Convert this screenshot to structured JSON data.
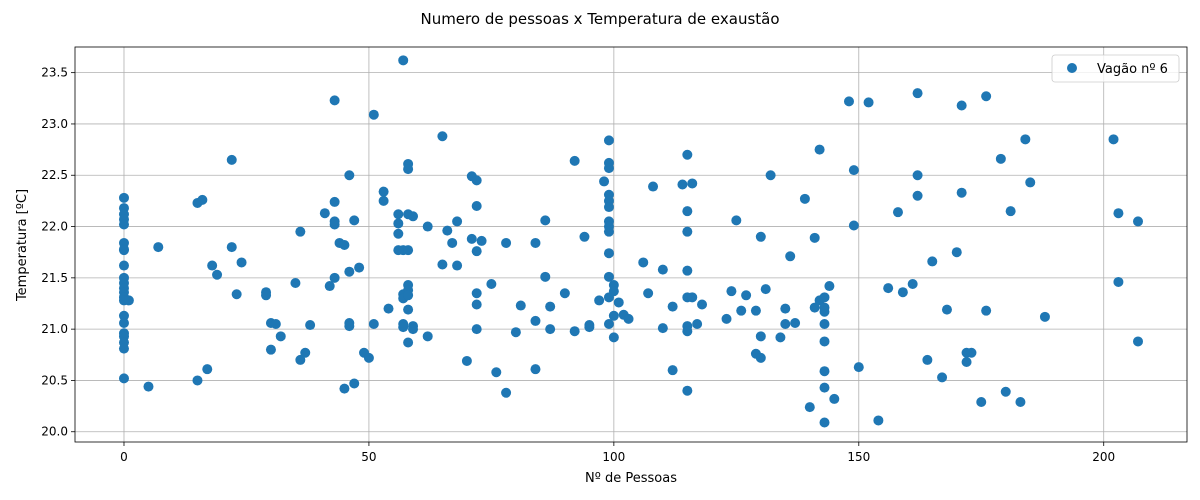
{
  "chart_data": {
    "type": "scatter",
    "title": "Numero de pessoas x Temperatura de exaustão",
    "xlabel": "Nº de Pessoas",
    "ylabel": "Temperatura [ºC]",
    "xlim": [
      -10,
      217
    ],
    "ylim": [
      19.9,
      23.75
    ],
    "xticks": [
      0,
      50,
      100,
      150,
      200
    ],
    "xtick_labels": [
      "0",
      "50",
      "100",
      "150",
      "200"
    ],
    "yticks": [
      20.0,
      20.5,
      21.0,
      21.5,
      22.0,
      22.5,
      23.0,
      23.5
    ],
    "ytick_labels": [
      "20.0",
      "20.5",
      "21.0",
      "21.5",
      "22.0",
      "22.5",
      "23.0",
      "23.5"
    ],
    "grid": true,
    "legend_position": "top-right",
    "series": [
      {
        "name": "Vagão nº 6",
        "color": "#1f77b4",
        "points": [
          [
            0,
            22.28
          ],
          [
            0,
            22.18
          ],
          [
            0,
            22.12
          ],
          [
            0,
            22.07
          ],
          [
            0,
            22.02
          ],
          [
            0,
            21.84
          ],
          [
            0,
            21.78
          ],
          [
            0,
            21.77
          ],
          [
            0,
            21.62
          ],
          [
            0,
            21.5
          ],
          [
            0,
            21.45
          ],
          [
            0,
            21.4
          ],
          [
            0,
            21.36
          ],
          [
            0,
            21.31
          ],
          [
            0,
            21.28
          ],
          [
            0,
            21.13
          ],
          [
            0,
            21.06
          ],
          [
            0,
            20.96
          ],
          [
            0,
            20.93
          ],
          [
            0,
            20.87
          ],
          [
            0,
            20.81
          ],
          [
            0,
            20.52
          ],
          [
            1,
            21.28
          ],
          [
            5,
            20.44
          ],
          [
            7,
            21.8
          ],
          [
            15,
            22.23
          ],
          [
            15,
            20.5
          ],
          [
            16,
            22.26
          ],
          [
            17,
            20.61
          ],
          [
            18,
            21.62
          ],
          [
            19,
            21.53
          ],
          [
            22,
            21.8
          ],
          [
            22,
            22.65
          ],
          [
            23,
            21.34
          ],
          [
            24,
            21.65
          ],
          [
            29,
            21.36
          ],
          [
            29,
            21.33
          ],
          [
            30,
            21.06
          ],
          [
            30,
            20.8
          ],
          [
            31,
            21.05
          ],
          [
            32,
            20.93
          ],
          [
            35,
            21.45
          ],
          [
            36,
            21.95
          ],
          [
            36,
            20.7
          ],
          [
            37,
            20.77
          ],
          [
            38,
            21.04
          ],
          [
            41,
            22.13
          ],
          [
            42,
            21.42
          ],
          [
            43,
            23.23
          ],
          [
            43,
            22.24
          ],
          [
            43,
            22.05
          ],
          [
            43,
            22.02
          ],
          [
            43,
            21.5
          ],
          [
            44,
            21.84
          ],
          [
            45,
            21.82
          ],
          [
            45,
            20.42
          ],
          [
            46,
            22.5
          ],
          [
            46,
            21.56
          ],
          [
            46,
            21.06
          ],
          [
            46,
            21.03
          ],
          [
            47,
            22.06
          ],
          [
            47,
            20.47
          ],
          [
            48,
            21.6
          ],
          [
            49,
            20.77
          ],
          [
            50,
            20.72
          ],
          [
            51,
            23.09
          ],
          [
            51,
            21.05
          ],
          [
            53,
            22.34
          ],
          [
            53,
            22.25
          ],
          [
            54,
            21.2
          ],
          [
            56,
            22.12
          ],
          [
            56,
            22.03
          ],
          [
            56,
            21.93
          ],
          [
            56,
            21.77
          ],
          [
            57,
            23.62
          ],
          [
            57,
            21.77
          ],
          [
            57,
            21.34
          ],
          [
            57,
            21.3
          ],
          [
            57,
            21.05
          ],
          [
            57,
            21.02
          ],
          [
            58,
            22.61
          ],
          [
            58,
            22.56
          ],
          [
            58,
            22.12
          ],
          [
            58,
            21.77
          ],
          [
            58,
            21.43
          ],
          [
            58,
            21.38
          ],
          [
            58,
            21.33
          ],
          [
            58,
            21.19
          ],
          [
            58,
            20.87
          ],
          [
            59,
            22.1
          ],
          [
            59,
            21.03
          ],
          [
            59,
            21.0
          ],
          [
            62,
            22.0
          ],
          [
            62,
            20.93
          ],
          [
            65,
            22.88
          ],
          [
            65,
            21.63
          ],
          [
            66,
            21.96
          ],
          [
            67,
            21.84
          ],
          [
            68,
            22.05
          ],
          [
            68,
            21.62
          ],
          [
            70,
            20.69
          ],
          [
            71,
            22.49
          ],
          [
            71,
            21.88
          ],
          [
            72,
            22.45
          ],
          [
            72,
            22.2
          ],
          [
            72,
            21.76
          ],
          [
            72,
            21.35
          ],
          [
            72,
            21.24
          ],
          [
            72,
            21.0
          ],
          [
            73,
            21.86
          ],
          [
            75,
            21.44
          ],
          [
            76,
            20.58
          ],
          [
            78,
            21.84
          ],
          [
            78,
            20.38
          ],
          [
            80,
            20.97
          ],
          [
            81,
            21.23
          ],
          [
            84,
            21.84
          ],
          [
            84,
            21.08
          ],
          [
            84,
            20.61
          ],
          [
            86,
            22.06
          ],
          [
            86,
            21.51
          ],
          [
            87,
            21.22
          ],
          [
            87,
            21.0
          ],
          [
            90,
            21.35
          ],
          [
            92,
            22.64
          ],
          [
            92,
            20.98
          ],
          [
            94,
            21.9
          ],
          [
            95,
            21.04
          ],
          [
            95,
            21.02
          ],
          [
            97,
            21.28
          ],
          [
            98,
            22.44
          ],
          [
            99,
            22.84
          ],
          [
            99,
            22.62
          ],
          [
            99,
            22.57
          ],
          [
            99,
            22.31
          ],
          [
            99,
            22.25
          ],
          [
            99,
            22.19
          ],
          [
            99,
            22.05
          ],
          [
            99,
            22.0
          ],
          [
            99,
            21.95
          ],
          [
            99,
            21.74
          ],
          [
            99,
            21.51
          ],
          [
            99,
            21.31
          ],
          [
            99,
            21.05
          ],
          [
            100,
            21.43
          ],
          [
            100,
            21.37
          ],
          [
            100,
            21.13
          ],
          [
            100,
            20.92
          ],
          [
            101,
            21.26
          ],
          [
            102,
            21.14
          ],
          [
            103,
            21.1
          ],
          [
            106,
            21.65
          ],
          [
            107,
            21.35
          ],
          [
            108,
            22.39
          ],
          [
            110,
            21.58
          ],
          [
            110,
            21.01
          ],
          [
            112,
            21.22
          ],
          [
            112,
            20.6
          ],
          [
            114,
            22.41
          ],
          [
            115,
            22.7
          ],
          [
            115,
            22.15
          ],
          [
            115,
            21.95
          ],
          [
            115,
            21.57
          ],
          [
            115,
            21.31
          ],
          [
            115,
            21.03
          ],
          [
            115,
            20.98
          ],
          [
            115,
            20.4
          ],
          [
            116,
            22.42
          ],
          [
            116,
            21.31
          ],
          [
            117,
            21.05
          ],
          [
            118,
            21.24
          ],
          [
            123,
            21.1
          ],
          [
            124,
            21.37
          ],
          [
            125,
            22.06
          ],
          [
            126,
            21.18
          ],
          [
            127,
            21.33
          ],
          [
            129,
            21.18
          ],
          [
            129,
            20.76
          ],
          [
            130,
            21.9
          ],
          [
            130,
            20.93
          ],
          [
            130,
            20.72
          ],
          [
            131,
            21.39
          ],
          [
            132,
            22.5
          ],
          [
            134,
            20.92
          ],
          [
            135,
            21.2
          ],
          [
            135,
            21.05
          ],
          [
            136,
            21.71
          ],
          [
            137,
            21.06
          ],
          [
            139,
            22.27
          ],
          [
            140,
            20.24
          ],
          [
            141,
            21.89
          ],
          [
            141,
            21.21
          ],
          [
            142,
            22.75
          ],
          [
            142,
            21.28
          ],
          [
            143,
            21.31
          ],
          [
            143,
            21.21
          ],
          [
            143,
            21.17
          ],
          [
            143,
            21.05
          ],
          [
            143,
            20.88
          ],
          [
            143,
            20.59
          ],
          [
            143,
            20.43
          ],
          [
            143,
            20.09
          ],
          [
            144,
            21.42
          ],
          [
            145,
            20.32
          ],
          [
            148,
            23.22
          ],
          [
            149,
            22.55
          ],
          [
            149,
            22.01
          ],
          [
            150,
            20.63
          ],
          [
            152,
            23.21
          ],
          [
            154,
            20.11
          ],
          [
            156,
            21.4
          ],
          [
            158,
            22.14
          ],
          [
            159,
            21.36
          ],
          [
            161,
            21.44
          ],
          [
            162,
            23.3
          ],
          [
            162,
            22.5
          ],
          [
            162,
            22.3
          ],
          [
            164,
            20.7
          ],
          [
            165,
            21.66
          ],
          [
            167,
            20.53
          ],
          [
            168,
            21.19
          ],
          [
            170,
            21.75
          ],
          [
            171,
            23.18
          ],
          [
            171,
            22.33
          ],
          [
            172,
            20.77
          ],
          [
            172,
            20.68
          ],
          [
            173,
            20.77
          ],
          [
            175,
            20.29
          ],
          [
            176,
            23.27
          ],
          [
            176,
            21.18
          ],
          [
            179,
            22.66
          ],
          [
            180,
            20.39
          ],
          [
            181,
            22.15
          ],
          [
            183,
            20.29
          ],
          [
            184,
            22.85
          ],
          [
            185,
            22.43
          ],
          [
            188,
            21.12
          ],
          [
            202,
            22.85
          ],
          [
            203,
            22.13
          ],
          [
            203,
            21.46
          ],
          [
            207,
            22.05
          ],
          [
            207,
            20.88
          ]
        ]
      }
    ]
  }
}
